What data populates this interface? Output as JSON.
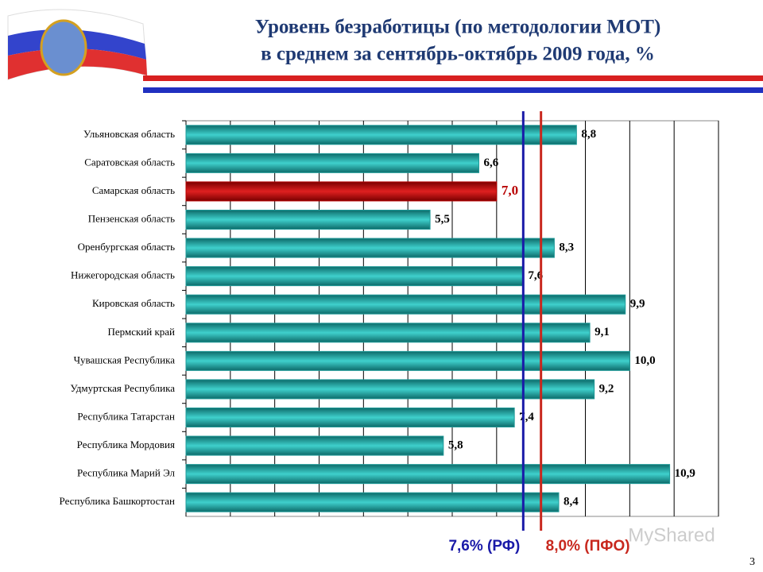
{
  "chart_data": {
    "type": "hbar",
    "title": "Уровень безработицы (по методологии МОТ)",
    "subtitle": "в среднем за сентябрь-октябрь 2009 года, %",
    "categories": [
      "Ульяновская область",
      "Саратовская область",
      "Самарская область",
      "Пензенская область",
      "Оренбургская область",
      "Нижегородская область",
      "Кировская область",
      "Пермский край",
      "Чувашская Республика",
      "Удмуртская Республика",
      "Республика Татарстан",
      "Республика Мордовия",
      "Республика Марий Эл",
      "Республика Башкортостан"
    ],
    "values": [
      8.8,
      6.6,
      7.0,
      5.5,
      8.3,
      7.6,
      9.9,
      9.1,
      10.0,
      9.2,
      7.4,
      5.8,
      10.9,
      8.4
    ],
    "value_labels": [
      "8,8",
      "6,6",
      "7,0",
      "5,5",
      "8,3",
      "7,6",
      "9,9",
      "9,1",
      "10,0",
      "9,2",
      "7,4",
      "5,8",
      "10,9",
      "8,4"
    ],
    "color": "#1f9a98",
    "highlight_index": 2,
    "highlight_color": "#b80000",
    "xlim": [
      0,
      12
    ],
    "xticks": [
      0,
      1,
      2,
      3,
      4,
      5,
      6,
      7,
      8,
      9,
      10,
      11,
      12
    ],
    "grid": true,
    "reference_lines": [
      {
        "value": 7.6,
        "label": "7,6% (РФ)",
        "color": "#1a1aa8"
      },
      {
        "value": 8.0,
        "label": "8,0% (ПФО)",
        "color": "#c8281e"
      }
    ]
  },
  "page_number": "3",
  "watermark": "MyShared"
}
